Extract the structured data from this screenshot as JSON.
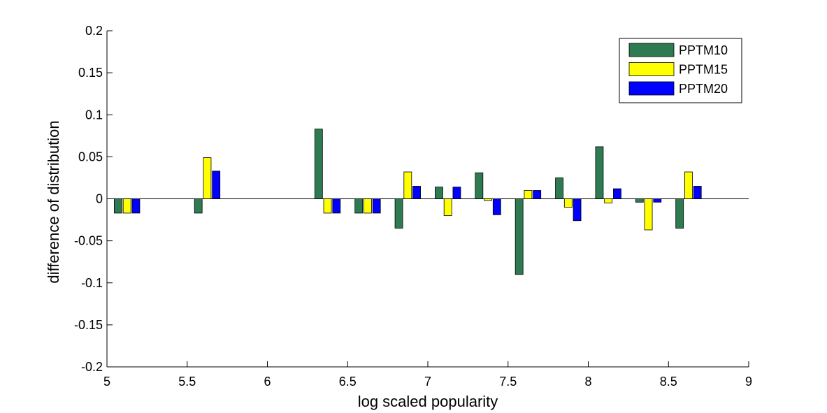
{
  "chart_data": {
    "type": "bar",
    "title": "",
    "xlabel": "log scaled popularity",
    "ylabel": "difference of distribution",
    "xlim": [
      5,
      9
    ],
    "ylim": [
      -0.2,
      0.2
    ],
    "x_ticks": [
      "5",
      "5.5",
      "6",
      "6.5",
      "7",
      "7.5",
      "8",
      "8.5",
      "9"
    ],
    "y_ticks": [
      "0.2",
      "0.15",
      "0.1",
      "0.05",
      "0",
      "-0.05",
      "-0.1",
      "-0.15",
      "-0.2"
    ],
    "grid": false,
    "legend_position": "top-right",
    "x": [
      5.125,
      5.625,
      6.375,
      6.625,
      6.875,
      7.125,
      7.375,
      7.625,
      7.875,
      8.125,
      8.375,
      8.625
    ],
    "series": [
      {
        "name": "PPTM10",
        "color": "#2e7b52",
        "values": [
          -0.017,
          -0.017,
          0.083,
          -0.017,
          -0.035,
          0.014,
          0.031,
          -0.09,
          0.025,
          0.062,
          -0.004,
          -0.035
        ]
      },
      {
        "name": "PPTM15",
        "color": "#ffff00",
        "values": [
          -0.017,
          0.049,
          -0.017,
          -0.017,
          0.032,
          -0.02,
          -0.002,
          0.01,
          -0.01,
          -0.005,
          -0.037,
          0.032
        ]
      },
      {
        "name": "PPTM20",
        "color": "#0000ff",
        "values": [
          -0.017,
          0.033,
          -0.017,
          -0.017,
          0.015,
          0.014,
          -0.019,
          0.01,
          -0.026,
          0.012,
          -0.004,
          0.015
        ]
      }
    ]
  }
}
